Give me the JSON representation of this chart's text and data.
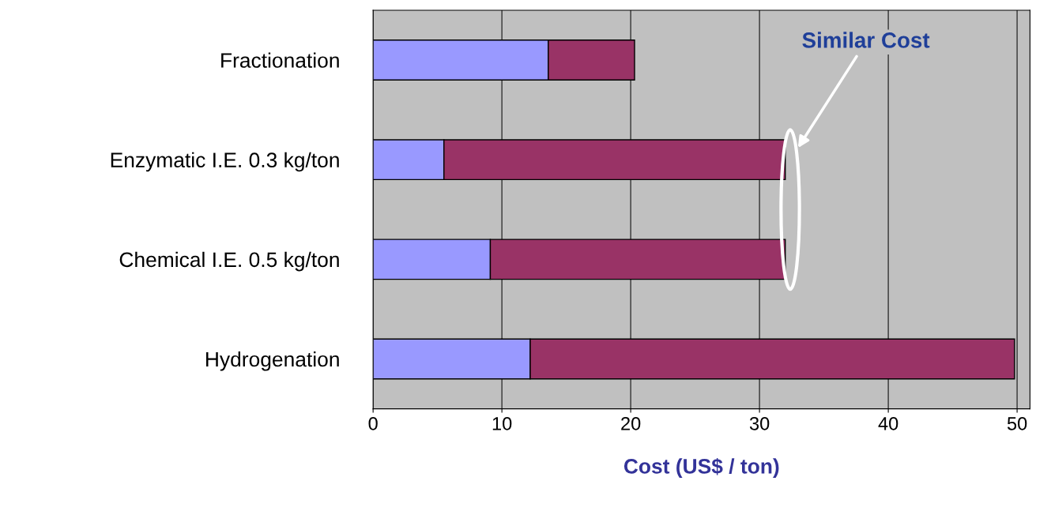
{
  "chart_data": {
    "type": "bar",
    "orientation": "horizontal",
    "stacked": true,
    "categories": [
      "Fractionation",
      "Enzymatic I.E. 0.3 kg/ton",
      "Chemical I.E. 0.5 kg/ton",
      "Hydrogenation"
    ],
    "series": [
      {
        "color": "#9999ff",
        "values": [
          13.6,
          5.5,
          9.1,
          12.2
        ]
      },
      {
        "color": "#993366",
        "values": [
          6.7,
          26.5,
          22.9,
          37.6
        ]
      }
    ],
    "xlabel": "Cost (US$ / ton)",
    "xlim": [
      0,
      51
    ],
    "xticks": [
      0,
      10,
      20,
      30,
      40,
      50
    ],
    "grid": "x",
    "legend": false,
    "annotations": [
      "Similar Cost"
    ]
  }
}
